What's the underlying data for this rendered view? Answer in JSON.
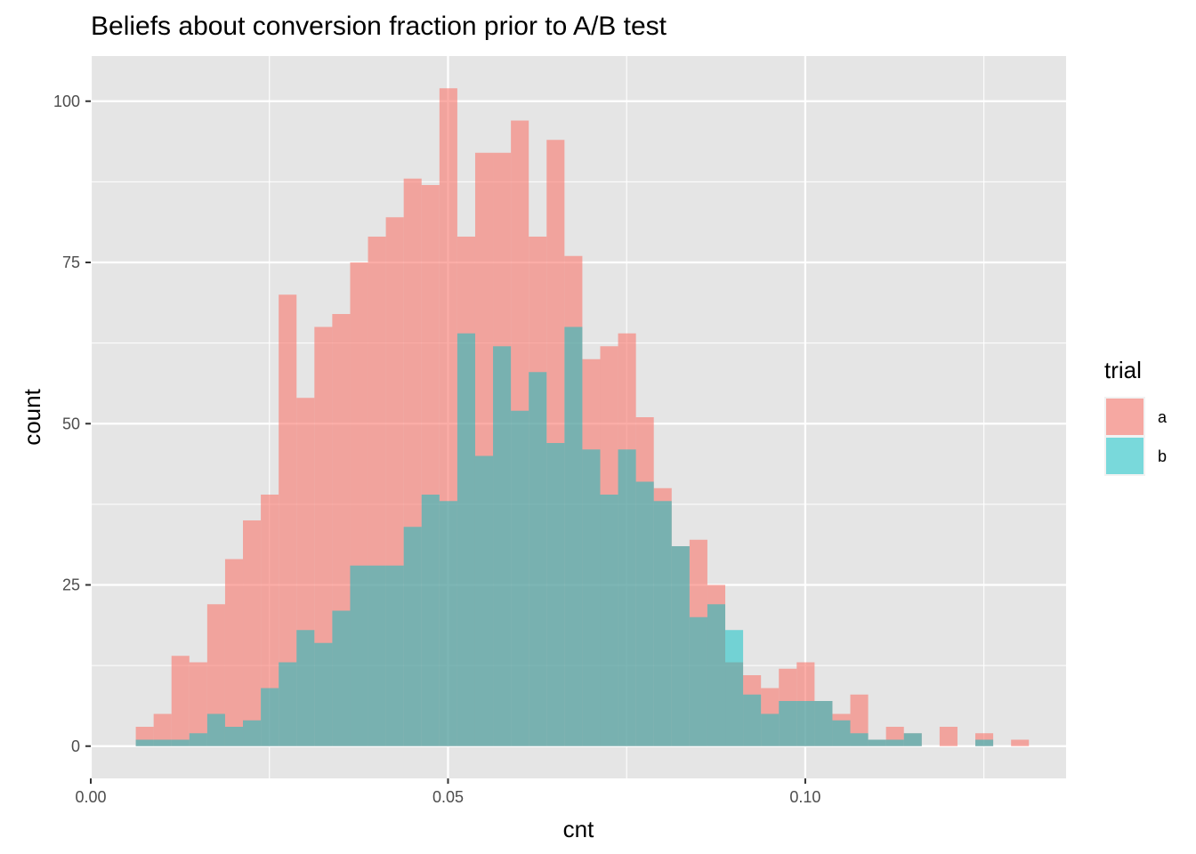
{
  "chart_data": {
    "type": "bar",
    "subtype": "histogram-overlay",
    "title": "Beliefs about conversion fraction prior to A/B test",
    "xlabel": "cnt",
    "ylabel": "count",
    "xlim": [
      0.0,
      0.1365
    ],
    "ylim": [
      -5,
      107
    ],
    "x_ticks": [
      {
        "value": 0.0,
        "label": "0.00"
      },
      {
        "value": 0.05,
        "label": "0.05"
      },
      {
        "value": 0.1,
        "label": "0.10"
      }
    ],
    "y_ticks": [
      {
        "value": 0,
        "label": "0"
      },
      {
        "value": 25,
        "label": "25"
      },
      {
        "value": 50,
        "label": "50"
      },
      {
        "value": 75,
        "label": "75"
      },
      {
        "value": 100,
        "label": "100"
      }
    ],
    "grid": true,
    "legend": {
      "title": "trial",
      "placement": "right"
    },
    "bin_start": 0.0063,
    "bin_width": 0.0025,
    "series": [
      {
        "name": "a",
        "color": "#F8766D",
        "opacity": 0.6,
        "values": [
          3,
          5,
          14,
          13,
          22,
          29,
          35,
          39,
          70,
          54,
          65,
          67,
          75,
          79,
          82,
          88,
          87,
          102,
          79,
          92,
          92,
          97,
          79,
          94,
          76,
          60,
          62,
          64,
          51,
          40,
          31,
          32,
          25,
          13,
          11,
          9,
          12,
          13,
          7,
          5,
          8,
          1,
          3,
          2,
          0,
          3,
          0,
          2,
          0,
          1
        ]
      },
      {
        "name": "b",
        "color": "#00BFC4",
        "opacity": 0.5,
        "values": [
          1,
          1,
          1,
          2,
          5,
          3,
          4,
          9,
          13,
          18,
          16,
          21,
          28,
          28,
          28,
          34,
          39,
          38,
          64,
          45,
          62,
          52,
          58,
          47,
          65,
          46,
          39,
          46,
          41,
          38,
          31,
          20,
          22,
          18,
          8,
          5,
          7,
          7,
          7,
          4,
          2,
          1,
          1,
          2,
          0,
          0,
          0,
          1,
          0,
          0
        ]
      }
    ]
  }
}
